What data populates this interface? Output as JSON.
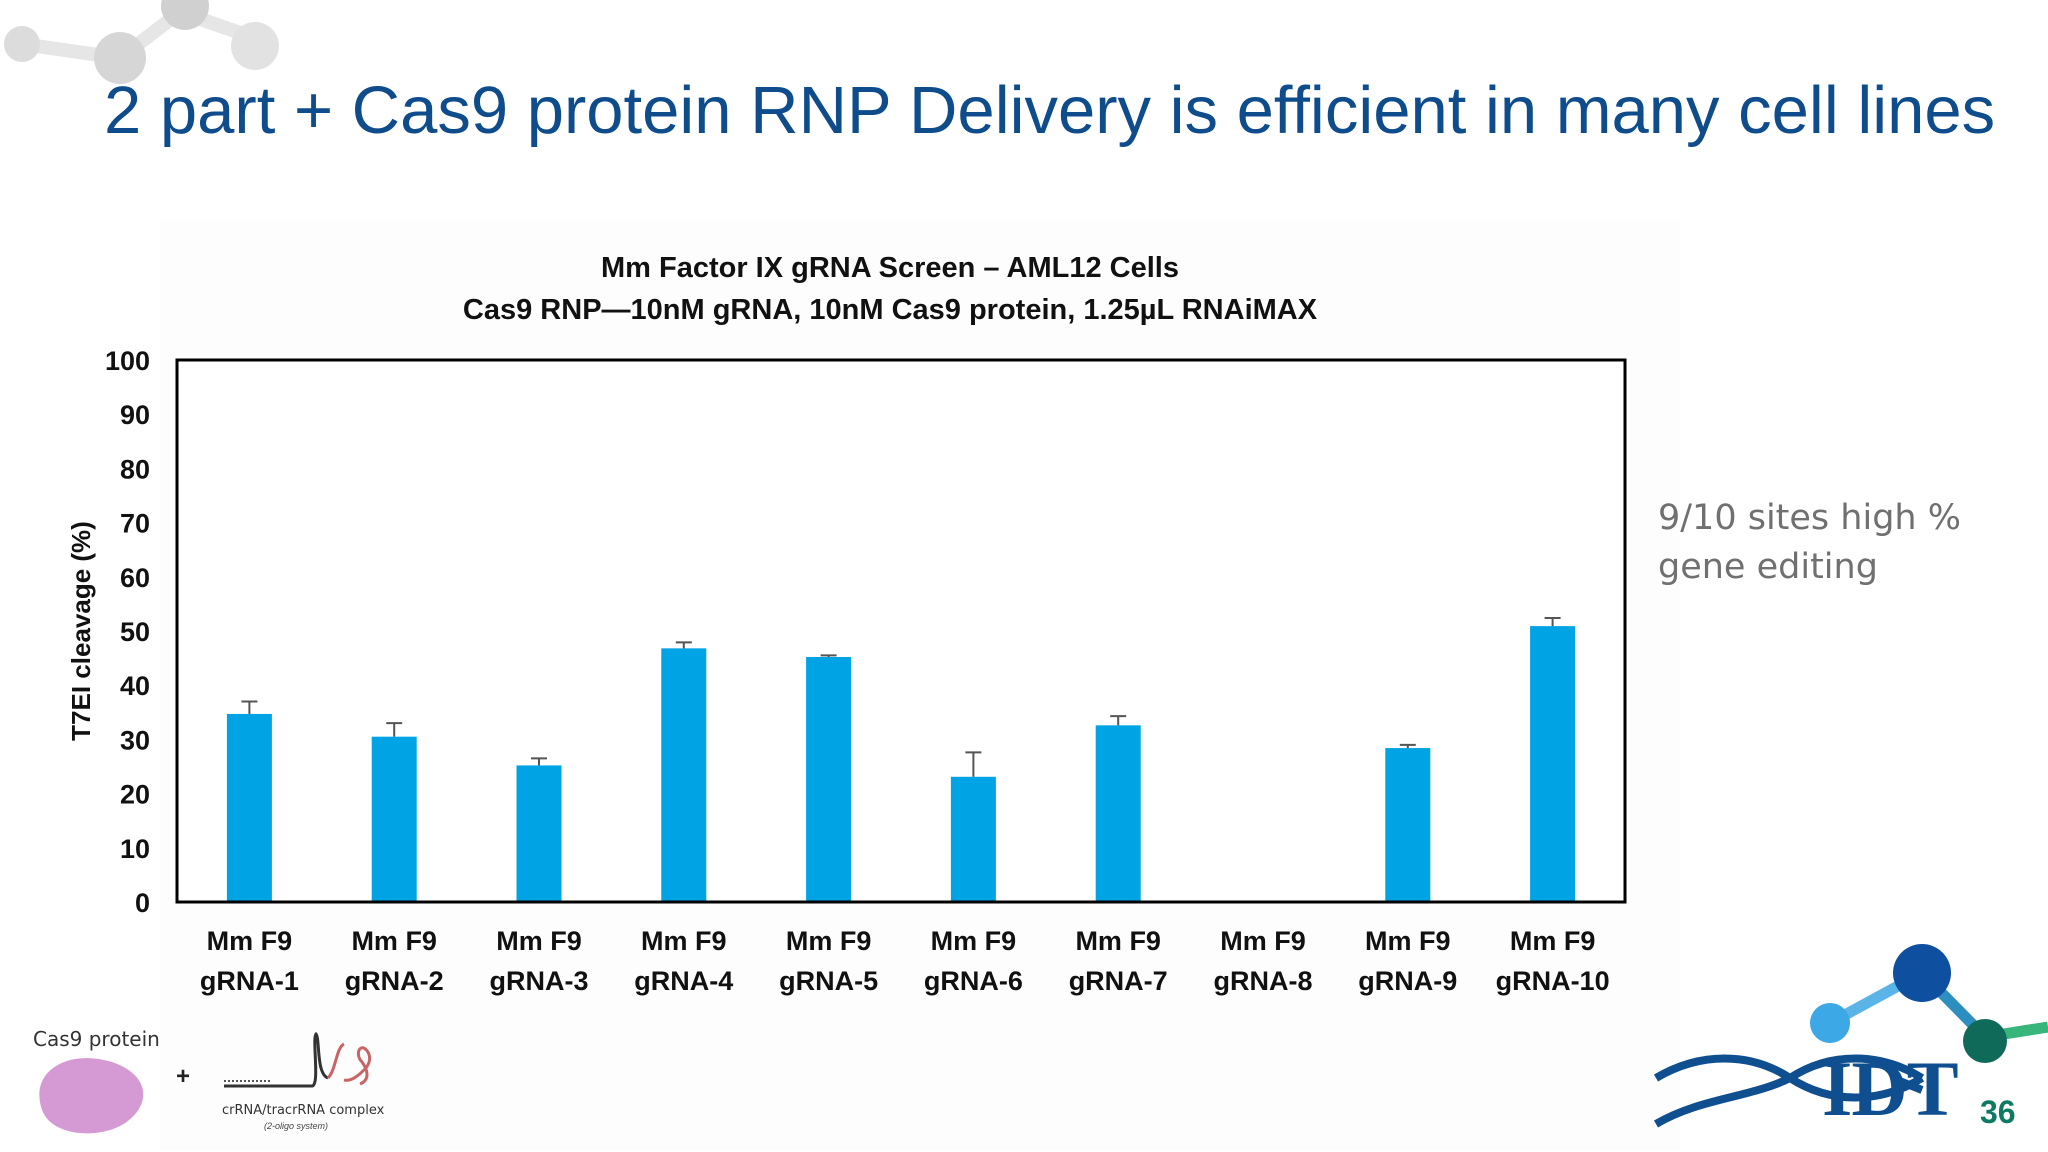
{
  "slide": {
    "title": "2 part + Cas9 protein RNP Delivery is efficient in many cell lines",
    "callout": "9/10 sites high % gene editing",
    "page_number": "36"
  },
  "figure": {
    "cas9_label": "Cas9 protein",
    "plus": "+",
    "complex_label": "crRNA/tracrRNA complex",
    "complex_sublabel": "(2-oligo system)"
  },
  "logo": {
    "text": "IDT"
  },
  "colors": {
    "title": "#0e4c8c",
    "bar": "#00a3e3",
    "logo": "#0f4f8f",
    "page_number": "#0e7a62"
  },
  "chart_data": {
    "type": "bar",
    "title": "Mm Factor IX gRNA Screen – AML12 Cells",
    "subtitle": "Cas9 RNP—10nM gRNA, 10nM Cas9 protein, 1.25µL RNAiMAX",
    "ylabel": "T7EI cleavage (%)",
    "xlabel": "",
    "ylim": [
      0,
      100
    ],
    "yticks": [
      0,
      10,
      20,
      30,
      40,
      50,
      60,
      70,
      80,
      90,
      100
    ],
    "grid": false,
    "categories": [
      [
        "Mm F9",
        "gRNA-1"
      ],
      [
        "Mm F9",
        "gRNA-2"
      ],
      [
        "Mm F9",
        "gRNA-3"
      ],
      [
        "Mm F9",
        "gRNA-4"
      ],
      [
        "Mm F9",
        "gRNA-5"
      ],
      [
        "Mm F9",
        "gRNA-6"
      ],
      [
        "Mm F9",
        "gRNA-7"
      ],
      [
        "Mm F9",
        "gRNA-8"
      ],
      [
        "Mm F9",
        "gRNA-9"
      ],
      [
        "Mm F9",
        "gRNA-10"
      ]
    ],
    "values": [
      34.7,
      30.5,
      25.2,
      46.8,
      45.2,
      23.1,
      32.6,
      0,
      28.4,
      50.9
    ],
    "error": [
      2.3,
      2.5,
      1.3,
      1.1,
      0.3,
      4.5,
      1.7,
      0,
      0.6,
      1.5
    ]
  }
}
